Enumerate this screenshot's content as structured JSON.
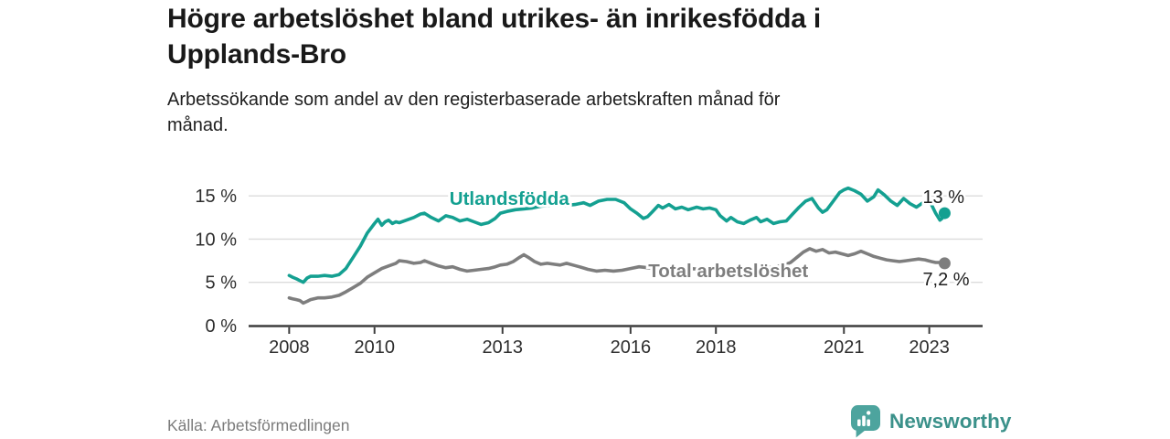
{
  "header": {
    "title_line1": "Högre arbetslöshet bland utrikes- än inrikesfödda i",
    "title_line2": "Upplands-Bro",
    "subtitle_line1": "Arbetssökande som andel av den registerbaserade arbetskraften månad för",
    "subtitle_line2": "månad."
  },
  "footer": {
    "source": "Källa: Arbetsförmedlingen",
    "brand": "Newsworthy"
  },
  "colors": {
    "series_foreign_born": "#14A091",
    "series_total": "#7E7E7E",
    "grid": "#DCDCDC",
    "axis": "#3D3D3D",
    "tick_text": "#2D2D2D",
    "end_label_text": "#1E1E1E",
    "brand_icon_teal": "#4DA49E",
    "brand_text_teal": "#3B918A",
    "icon_bars": "#FFFFFF"
  },
  "icons": {
    "newsworthy_icon": "speech-bubble-with-bar-chart"
  },
  "chart_data": {
    "type": "line",
    "title": "Högre arbetslöshet bland utrikes- än inrikesfödda i Upplands-Bro",
    "subtitle": "Arbetssökande som andel av den registerbaserade arbetskraften månad för månad.",
    "xlabel": "",
    "ylabel": "",
    "x_unit": "year (fractional years = months)",
    "y_unit": "percent",
    "xlim": [
      2007.05,
      2024.25
    ],
    "ylim": [
      0,
      16.5
    ],
    "grid": "horizontal",
    "legend": "inline series labels",
    "xticks": [
      2008,
      2010,
      2013,
      2016,
      2018,
      2021,
      2023
    ],
    "xtick_labels": [
      "2008",
      "2010",
      "2013",
      "2016",
      "2018",
      "2021",
      "2023"
    ],
    "yticks": [
      0,
      5,
      10,
      15
    ],
    "ytick_labels": [
      "0 %",
      "5 %",
      "10 %",
      "15 %"
    ],
    "series": [
      {
        "name": "Utlandsfödda",
        "color": "#14A091",
        "end_label": "13 %",
        "end_value": 13.0,
        "label_pos": {
          "x": 2013.16,
          "y": 14.7
        },
        "points": [
          [
            2008.0,
            5.8
          ],
          [
            2008.08,
            5.6
          ],
          [
            2008.17,
            5.4
          ],
          [
            2008.25,
            5.2
          ],
          [
            2008.33,
            5.0
          ],
          [
            2008.42,
            5.5
          ],
          [
            2008.5,
            5.7
          ],
          [
            2008.67,
            5.7
          ],
          [
            2008.83,
            5.8
          ],
          [
            2009.0,
            5.7
          ],
          [
            2009.17,
            5.9
          ],
          [
            2009.33,
            6.6
          ],
          [
            2009.5,
            7.9
          ],
          [
            2009.67,
            9.2
          ],
          [
            2009.83,
            10.7
          ],
          [
            2010.0,
            11.8
          ],
          [
            2010.08,
            12.3
          ],
          [
            2010.17,
            11.6
          ],
          [
            2010.25,
            12.0
          ],
          [
            2010.33,
            12.2
          ],
          [
            2010.42,
            11.8
          ],
          [
            2010.5,
            12.0
          ],
          [
            2010.58,
            11.9
          ],
          [
            2010.75,
            12.2
          ],
          [
            2010.92,
            12.5
          ],
          [
            2011.08,
            12.9
          ],
          [
            2011.17,
            13.0
          ],
          [
            2011.33,
            12.5
          ],
          [
            2011.5,
            12.1
          ],
          [
            2011.67,
            12.7
          ],
          [
            2011.83,
            12.5
          ],
          [
            2012.0,
            12.1
          ],
          [
            2012.17,
            12.3
          ],
          [
            2012.33,
            12.0
          ],
          [
            2012.5,
            11.7
          ],
          [
            2012.67,
            11.9
          ],
          [
            2012.83,
            12.4
          ],
          [
            2012.95,
            13.0
          ],
          [
            2013.1,
            13.2
          ],
          [
            2013.3,
            13.4
          ],
          [
            2013.5,
            13.5
          ],
          [
            2013.7,
            13.6
          ],
          [
            2013.9,
            13.8
          ],
          [
            2014.1,
            13.9
          ],
          [
            2014.3,
            14.0
          ],
          [
            2014.5,
            13.9
          ],
          [
            2014.7,
            14.0
          ],
          [
            2014.9,
            14.2
          ],
          [
            2015.05,
            13.9
          ],
          [
            2015.25,
            14.4
          ],
          [
            2015.45,
            14.6
          ],
          [
            2015.65,
            14.6
          ],
          [
            2015.85,
            14.2
          ],
          [
            2016.0,
            13.5
          ],
          [
            2016.15,
            13.0
          ],
          [
            2016.3,
            12.4
          ],
          [
            2016.4,
            12.6
          ],
          [
            2016.5,
            13.1
          ],
          [
            2016.65,
            13.9
          ],
          [
            2016.75,
            13.6
          ],
          [
            2016.9,
            14.0
          ],
          [
            2017.05,
            13.5
          ],
          [
            2017.2,
            13.7
          ],
          [
            2017.35,
            13.4
          ],
          [
            2017.55,
            13.7
          ],
          [
            2017.7,
            13.5
          ],
          [
            2017.85,
            13.6
          ],
          [
            2018.0,
            13.4
          ],
          [
            2018.1,
            12.7
          ],
          [
            2018.25,
            12.1
          ],
          [
            2018.35,
            12.5
          ],
          [
            2018.5,
            12.0
          ],
          [
            2018.65,
            11.8
          ],
          [
            2018.8,
            12.2
          ],
          [
            2018.95,
            12.5
          ],
          [
            2019.05,
            12.0
          ],
          [
            2019.2,
            12.3
          ],
          [
            2019.35,
            11.8
          ],
          [
            2019.5,
            12.0
          ],
          [
            2019.65,
            12.1
          ],
          [
            2019.8,
            12.9
          ],
          [
            2019.95,
            13.7
          ],
          [
            2020.1,
            14.4
          ],
          [
            2020.25,
            14.7
          ],
          [
            2020.4,
            13.6
          ],
          [
            2020.5,
            13.1
          ],
          [
            2020.6,
            13.4
          ],
          [
            2020.75,
            14.4
          ],
          [
            2020.9,
            15.4
          ],
          [
            2021.0,
            15.7
          ],
          [
            2021.1,
            15.9
          ],
          [
            2021.25,
            15.6
          ],
          [
            2021.4,
            15.2
          ],
          [
            2021.55,
            14.4
          ],
          [
            2021.7,
            14.9
          ],
          [
            2021.8,
            15.7
          ],
          [
            2021.95,
            15.1
          ],
          [
            2022.1,
            14.4
          ],
          [
            2022.25,
            13.9
          ],
          [
            2022.4,
            14.7
          ],
          [
            2022.55,
            14.1
          ],
          [
            2022.7,
            13.7
          ],
          [
            2022.85,
            14.2
          ],
          [
            2022.95,
            14.5
          ],
          [
            2023.05,
            14.0
          ],
          [
            2023.15,
            13.0
          ],
          [
            2023.25,
            12.2
          ],
          [
            2023.3,
            12.4
          ],
          [
            2023.36,
            13.0
          ]
        ]
      },
      {
        "name": "Total arbetslöshet",
        "color": "#7E7E7E",
        "end_label": "7,2 %",
        "end_value": 7.2,
        "label_pos": {
          "x": 2018.29,
          "y": 6.34
        },
        "points": [
          [
            2008.0,
            3.2
          ],
          [
            2008.08,
            3.1
          ],
          [
            2008.17,
            3.0
          ],
          [
            2008.25,
            2.9
          ],
          [
            2008.33,
            2.6
          ],
          [
            2008.42,
            2.8
          ],
          [
            2008.5,
            3.0
          ],
          [
            2008.67,
            3.2
          ],
          [
            2008.83,
            3.2
          ],
          [
            2009.0,
            3.3
          ],
          [
            2009.17,
            3.5
          ],
          [
            2009.33,
            3.9
          ],
          [
            2009.5,
            4.4
          ],
          [
            2009.67,
            4.9
          ],
          [
            2009.83,
            5.6
          ],
          [
            2010.0,
            6.1
          ],
          [
            2010.17,
            6.6
          ],
          [
            2010.33,
            6.9
          ],
          [
            2010.5,
            7.2
          ],
          [
            2010.58,
            7.5
          ],
          [
            2010.75,
            7.4
          ],
          [
            2010.92,
            7.2
          ],
          [
            2011.08,
            7.3
          ],
          [
            2011.17,
            7.5
          ],
          [
            2011.33,
            7.2
          ],
          [
            2011.5,
            6.9
          ],
          [
            2011.67,
            6.7
          ],
          [
            2011.83,
            6.8
          ],
          [
            2012.0,
            6.5
          ],
          [
            2012.17,
            6.3
          ],
          [
            2012.33,
            6.4
          ],
          [
            2012.5,
            6.5
          ],
          [
            2012.67,
            6.6
          ],
          [
            2012.83,
            6.8
          ],
          [
            2012.95,
            7.0
          ],
          [
            2013.1,
            7.1
          ],
          [
            2013.25,
            7.4
          ],
          [
            2013.4,
            7.9
          ],
          [
            2013.5,
            8.2
          ],
          [
            2013.6,
            7.9
          ],
          [
            2013.75,
            7.4
          ],
          [
            2013.9,
            7.1
          ],
          [
            2014.05,
            7.2
          ],
          [
            2014.2,
            7.1
          ],
          [
            2014.35,
            7.0
          ],
          [
            2014.5,
            7.2
          ],
          [
            2014.65,
            7.0
          ],
          [
            2014.8,
            6.8
          ],
          [
            2015.0,
            6.5
          ],
          [
            2015.2,
            6.3
          ],
          [
            2015.4,
            6.4
          ],
          [
            2015.6,
            6.3
          ],
          [
            2015.8,
            6.4
          ],
          [
            2016.0,
            6.6
          ],
          [
            2016.2,
            6.8
          ],
          [
            2016.4,
            6.7
          ],
          [
            2016.6,
            6.6
          ],
          [
            2016.8,
            6.5
          ],
          [
            2017.0,
            6.6
          ],
          [
            2017.2,
            6.7
          ],
          [
            2017.4,
            6.6
          ],
          [
            2017.6,
            6.5
          ],
          [
            2017.8,
            6.6
          ],
          [
            2018.0,
            6.5
          ],
          [
            2018.2,
            6.4
          ],
          [
            2018.4,
            6.5
          ],
          [
            2018.6,
            6.4
          ],
          [
            2018.8,
            6.5
          ],
          [
            2019.0,
            6.6
          ],
          [
            2019.2,
            6.7
          ],
          [
            2019.4,
            6.8
          ],
          [
            2019.6,
            7.0
          ],
          [
            2019.75,
            7.3
          ],
          [
            2019.9,
            7.9
          ],
          [
            2020.05,
            8.5
          ],
          [
            2020.2,
            8.9
          ],
          [
            2020.35,
            8.6
          ],
          [
            2020.5,
            8.8
          ],
          [
            2020.65,
            8.4
          ],
          [
            2020.8,
            8.5
          ],
          [
            2020.95,
            8.3
          ],
          [
            2021.1,
            8.1
          ],
          [
            2021.25,
            8.3
          ],
          [
            2021.4,
            8.6
          ],
          [
            2021.55,
            8.3
          ],
          [
            2021.7,
            8.0
          ],
          [
            2021.85,
            7.8
          ],
          [
            2022.0,
            7.6
          ],
          [
            2022.15,
            7.5
          ],
          [
            2022.3,
            7.4
          ],
          [
            2022.45,
            7.5
          ],
          [
            2022.6,
            7.6
          ],
          [
            2022.75,
            7.7
          ],
          [
            2022.9,
            7.6
          ],
          [
            2023.05,
            7.4
          ],
          [
            2023.15,
            7.3
          ],
          [
            2023.25,
            7.3
          ],
          [
            2023.36,
            7.2
          ]
        ]
      }
    ]
  }
}
